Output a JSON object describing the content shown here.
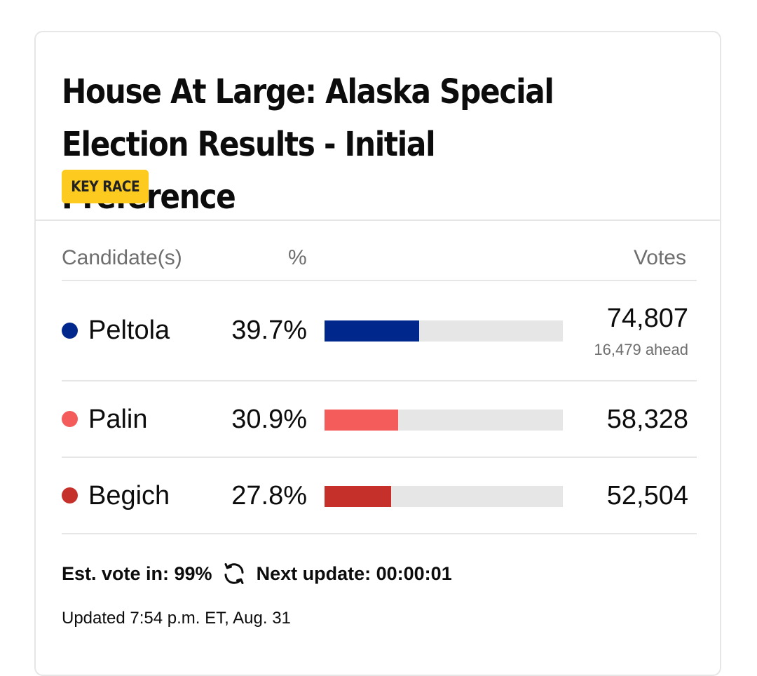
{
  "race": {
    "title": "House At Large: Alaska Special Election Results - Initial Preference",
    "badge": "KEY RACE"
  },
  "columns": {
    "candidate": "Candidate(s)",
    "percent": "%",
    "votes": "Votes"
  },
  "candidates": [
    {
      "name": "Peltola",
      "percent_label": "39.7%",
      "percent": 39.7,
      "votes": "74,807",
      "ahead": "16,479 ahead",
      "color": "#00288c"
    },
    {
      "name": "Palin",
      "percent_label": "30.9%",
      "percent": 30.9,
      "votes": "58,328",
      "color": "#f45b5b"
    },
    {
      "name": "Begich",
      "percent_label": "27.8%",
      "percent": 27.8,
      "votes": "52,504",
      "color": "#c5302a"
    }
  ],
  "status": {
    "est_vote": "Est. vote in: 99%",
    "next_update": "Next update: 00:00:01",
    "updated": "Updated 7:54 p.m. ET, Aug. 31",
    "refresh_icon": "refresh-icon"
  }
}
